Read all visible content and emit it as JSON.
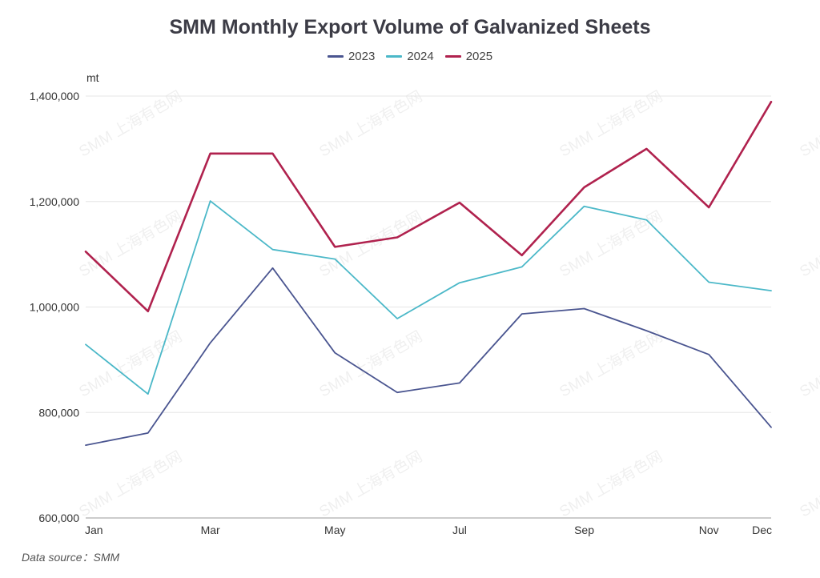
{
  "chart_data": {
    "type": "line",
    "title": "SMM Monthly Export Volume of Galvanized Sheets",
    "ylabel": "mt",
    "xlabel": "",
    "categories": [
      "Jan",
      "Feb",
      "Mar",
      "Apr",
      "May",
      "Jun",
      "Jul",
      "Aug",
      "Sep",
      "Oct",
      "Nov",
      "Dec"
    ],
    "x_tick_labels": [
      "Jan",
      "",
      "Mar",
      "",
      "May",
      "",
      "Jul",
      "",
      "Sep",
      "",
      "Nov",
      "Dec"
    ],
    "ylim": [
      600000,
      1400000
    ],
    "y_ticks": [
      600000,
      800000,
      1000000,
      1200000,
      1400000
    ],
    "y_tick_labels": [
      "600,000",
      "800,000",
      "1,000,000",
      "1,200,000",
      "1,400,000"
    ],
    "grid": true,
    "legend_position": "top",
    "series": [
      {
        "name": "2023",
        "color": "#4a5590",
        "values": [
          738000,
          761000,
          932000,
          1074000,
          913000,
          838000,
          856000,
          987000,
          997000,
          955000,
          910000,
          772000
        ]
      },
      {
        "name": "2024",
        "color": "#4bb8c8",
        "values": [
          929000,
          835000,
          1201000,
          1109000,
          1091000,
          978000,
          1046000,
          1076000,
          1191000,
          1165000,
          1047000,
          1031000
        ]
      },
      {
        "name": "2025",
        "color": "#b0224e",
        "values": [
          1105000,
          992000,
          1291000,
          1291000,
          1114000,
          1132000,
          1198000,
          1098000,
          1227000,
          1300000,
          1189000,
          1389000
        ]
      }
    ]
  },
  "source": "Data source：SMM",
  "watermark_text": "SMM 上海有色网"
}
